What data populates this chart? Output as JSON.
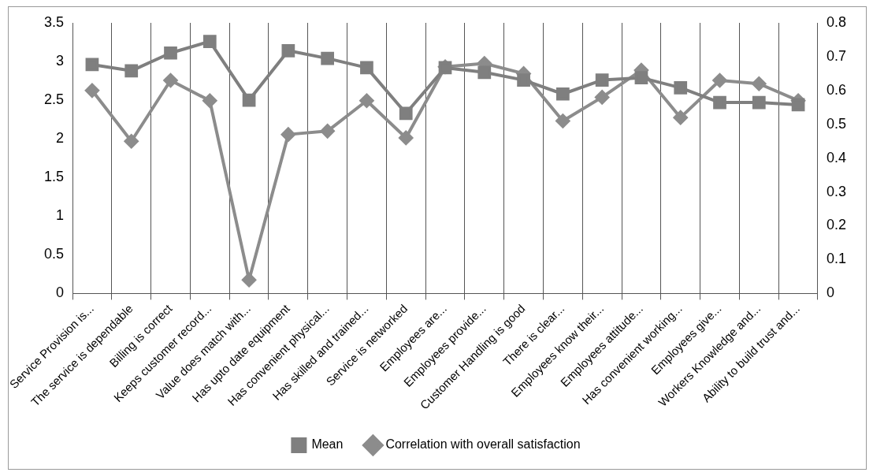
{
  "chart_data": {
    "type": "line",
    "categories": [
      "Service Provision is...",
      "The service is dependable",
      "Billing is correct",
      "Keeps customer record...",
      "Value does match with...",
      "Has upto date equipment",
      "Has convenient physical...",
      "Has skilled and trained...",
      "Service is networked",
      "Employees are...",
      "Employees provide...",
      "Customer Handling is good",
      "There is clear...",
      "Employees know their...",
      "Employees attitude...",
      "Has convenient working...",
      "Employees give...",
      "Workers Knowledge and...",
      "Ability to build trust and..."
    ],
    "series": [
      {
        "name": "Mean",
        "color": "#7f7f7f",
        "marker": "square",
        "values": [
          2.96,
          2.88,
          3.11,
          3.26,
          2.5,
          3.14,
          3.04,
          2.92,
          2.33,
          2.92,
          2.86,
          2.76,
          2.58,
          2.76,
          2.79,
          2.66,
          2.47,
          2.47,
          2.44
        ]
      },
      {
        "name": "Correlation with overall satisfaction",
        "color": "#8c8c8c",
        "marker": "diamond",
        "axis": "y2",
        "values": [
          0.6,
          0.45,
          0.63,
          0.57,
          0.04,
          0.47,
          0.48,
          0.57,
          0.46,
          0.67,
          0.68,
          0.65,
          0.51,
          0.58,
          0.66,
          0.52,
          0.63,
          0.62,
          0.57
        ]
      }
    ],
    "ylim": [
      0,
      3.5
    ],
    "yticks": [
      0,
      0.5,
      1,
      1.5,
      2,
      2.5,
      3,
      3.5
    ],
    "y2lim": [
      0,
      0.8
    ],
    "y2ticks": [
      0,
      0.1,
      0.2,
      0.3,
      0.4,
      0.5,
      0.6,
      0.7,
      0.8
    ],
    "grid": "x",
    "legend": "bottom",
    "line_style": "solid"
  }
}
